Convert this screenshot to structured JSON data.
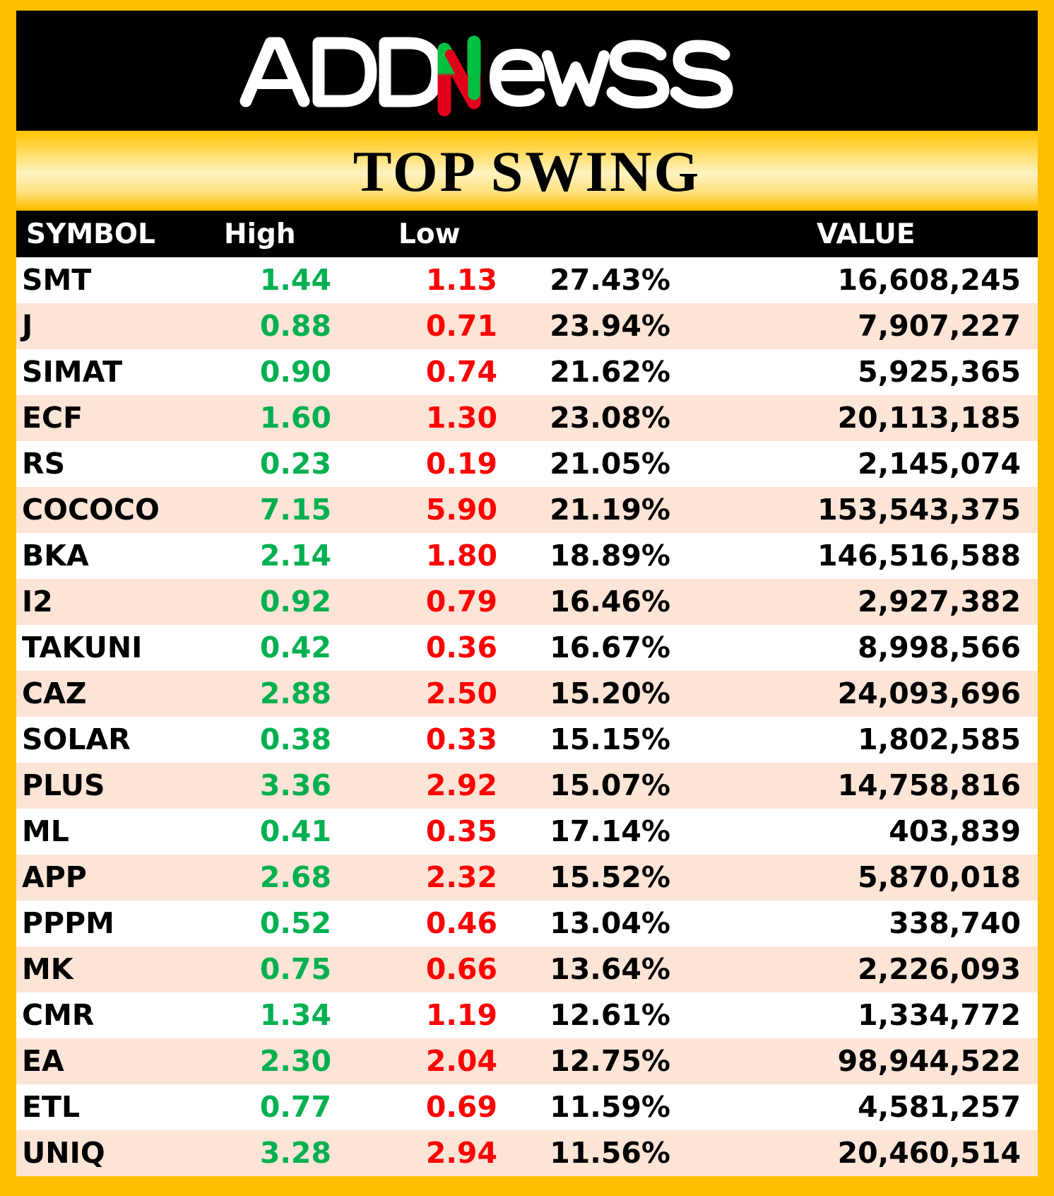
{
  "brand": {
    "logo_text": "ADDNewSS"
  },
  "title": "TOP SWING",
  "colors": {
    "background": "#FFC000",
    "header_bg": "#000000",
    "high": "#00B050",
    "low": "#FF0000",
    "row_alt": "#FCE4D6",
    "logo_accent_red": "#E3001B",
    "logo_accent_green": "#00C040"
  },
  "table": {
    "headers": {
      "symbol": "SYMBOL",
      "high": "High",
      "low": "Low",
      "pct": "",
      "value": "VALUE"
    },
    "rows": [
      {
        "symbol": "SMT",
        "high": "1.44",
        "low": "1.13",
        "pct": "27.43%",
        "value": "16,608,245"
      },
      {
        "symbol": "J",
        "high": "0.88",
        "low": "0.71",
        "pct": "23.94%",
        "value": "7,907,227"
      },
      {
        "symbol": "SIMAT",
        "high": "0.90",
        "low": "0.74",
        "pct": "21.62%",
        "value": "5,925,365"
      },
      {
        "symbol": "ECF",
        "high": "1.60",
        "low": "1.30",
        "pct": "23.08%",
        "value": "20,113,185"
      },
      {
        "symbol": "RS",
        "high": "0.23",
        "low": "0.19",
        "pct": "21.05%",
        "value": "2,145,074"
      },
      {
        "symbol": "COCOCO",
        "high": "7.15",
        "low": "5.90",
        "pct": "21.19%",
        "value": "153,543,375"
      },
      {
        "symbol": "BKA",
        "high": "2.14",
        "low": "1.80",
        "pct": "18.89%",
        "value": "146,516,588"
      },
      {
        "symbol": "I2",
        "high": "0.92",
        "low": "0.79",
        "pct": "16.46%",
        "value": "2,927,382"
      },
      {
        "symbol": "TAKUNI",
        "high": "0.42",
        "low": "0.36",
        "pct": "16.67%",
        "value": "8,998,566"
      },
      {
        "symbol": "CAZ",
        "high": "2.88",
        "low": "2.50",
        "pct": "15.20%",
        "value": "24,093,696"
      },
      {
        "symbol": "SOLAR",
        "high": "0.38",
        "low": "0.33",
        "pct": "15.15%",
        "value": "1,802,585"
      },
      {
        "symbol": "PLUS",
        "high": "3.36",
        "low": "2.92",
        "pct": "15.07%",
        "value": "14,758,816"
      },
      {
        "symbol": "ML",
        "high": "0.41",
        "low": "0.35",
        "pct": "17.14%",
        "value": "403,839"
      },
      {
        "symbol": "APP",
        "high": "2.68",
        "low": "2.32",
        "pct": "15.52%",
        "value": "5,870,018"
      },
      {
        "symbol": "PPPM",
        "high": "0.52",
        "low": "0.46",
        "pct": "13.04%",
        "value": "338,740"
      },
      {
        "symbol": "MK",
        "high": "0.75",
        "low": "0.66",
        "pct": "13.64%",
        "value": "2,226,093"
      },
      {
        "symbol": "CMR",
        "high": "1.34",
        "low": "1.19",
        "pct": "12.61%",
        "value": "1,334,772"
      },
      {
        "symbol": "EA",
        "high": "2.30",
        "low": "2.04",
        "pct": "12.75%",
        "value": "98,944,522"
      },
      {
        "symbol": "ETL",
        "high": "0.77",
        "low": "0.69",
        "pct": "11.59%",
        "value": "4,581,257"
      },
      {
        "symbol": "UNIQ",
        "high": "3.28",
        "low": "2.94",
        "pct": "11.56%",
        "value": "20,460,514"
      }
    ]
  }
}
